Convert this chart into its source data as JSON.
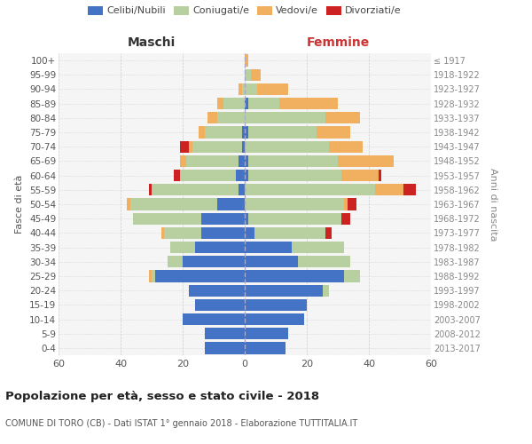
{
  "age_groups": [
    "0-4",
    "5-9",
    "10-14",
    "15-19",
    "20-24",
    "25-29",
    "30-34",
    "35-39",
    "40-44",
    "45-49",
    "50-54",
    "55-59",
    "60-64",
    "65-69",
    "70-74",
    "75-79",
    "80-84",
    "85-89",
    "90-94",
    "95-99",
    "100+"
  ],
  "birth_years": [
    "2013-2017",
    "2008-2012",
    "2003-2007",
    "1998-2002",
    "1993-1997",
    "1988-1992",
    "1983-1987",
    "1978-1982",
    "1973-1977",
    "1968-1972",
    "1963-1967",
    "1958-1962",
    "1953-1957",
    "1948-1952",
    "1943-1947",
    "1938-1942",
    "1933-1937",
    "1928-1932",
    "1923-1927",
    "1918-1922",
    "≤ 1917"
  ],
  "colors": {
    "celibe": "#4472c4",
    "coniugato": "#b8cfa0",
    "vedovo": "#f0b060",
    "divorziato": "#cc2222"
  },
  "male": {
    "celibe": [
      13,
      13,
      20,
      16,
      18,
      29,
      20,
      16,
      14,
      14,
      9,
      2,
      3,
      2,
      1,
      1,
      0,
      0,
      0,
      0,
      0
    ],
    "coniugato": [
      0,
      0,
      0,
      0,
      0,
      1,
      5,
      8,
      12,
      22,
      28,
      28,
      18,
      17,
      16,
      12,
      9,
      7,
      1,
      0,
      0
    ],
    "vedovo": [
      0,
      0,
      0,
      0,
      0,
      1,
      0,
      0,
      1,
      0,
      1,
      0,
      0,
      2,
      1,
      2,
      3,
      2,
      1,
      0,
      0
    ],
    "divorziato": [
      0,
      0,
      0,
      0,
      0,
      0,
      0,
      0,
      0,
      0,
      0,
      1,
      2,
      0,
      3,
      0,
      0,
      0,
      0,
      0,
      0
    ]
  },
  "female": {
    "nubile": [
      13,
      14,
      19,
      20,
      25,
      32,
      17,
      15,
      3,
      1,
      0,
      0,
      1,
      1,
      0,
      1,
      0,
      1,
      0,
      0,
      0
    ],
    "coniugata": [
      0,
      0,
      0,
      0,
      2,
      5,
      17,
      17,
      23,
      30,
      32,
      42,
      30,
      29,
      27,
      22,
      26,
      10,
      4,
      2,
      0
    ],
    "vedova": [
      0,
      0,
      0,
      0,
      0,
      0,
      0,
      0,
      0,
      0,
      1,
      9,
      12,
      18,
      11,
      11,
      11,
      19,
      10,
      3,
      1
    ],
    "divorziata": [
      0,
      0,
      0,
      0,
      0,
      0,
      0,
      0,
      2,
      3,
      3,
      4,
      1,
      0,
      0,
      0,
      0,
      0,
      0,
      0,
      0
    ]
  },
  "title_main": "Popolazione per età, sesso e stato civile - 2018",
  "title_sub": "COMUNE DI TORO (CB) - Dati ISTAT 1° gennaio 2018 - Elaborazione TUTTITALIA.IT",
  "xlabel_left": "Maschi",
  "xlabel_right": "Femmine",
  "ylabel_left": "Fasce di età",
  "ylabel_right": "Anni di nascita",
  "xlim": 60,
  "legend_labels": [
    "Celibi/Nubili",
    "Coniugati/e",
    "Vedovi/e",
    "Divorziati/e"
  ],
  "bg_color": "#f5f5f5",
  "grid_color": "#cccccc",
  "bar_height": 0.82
}
